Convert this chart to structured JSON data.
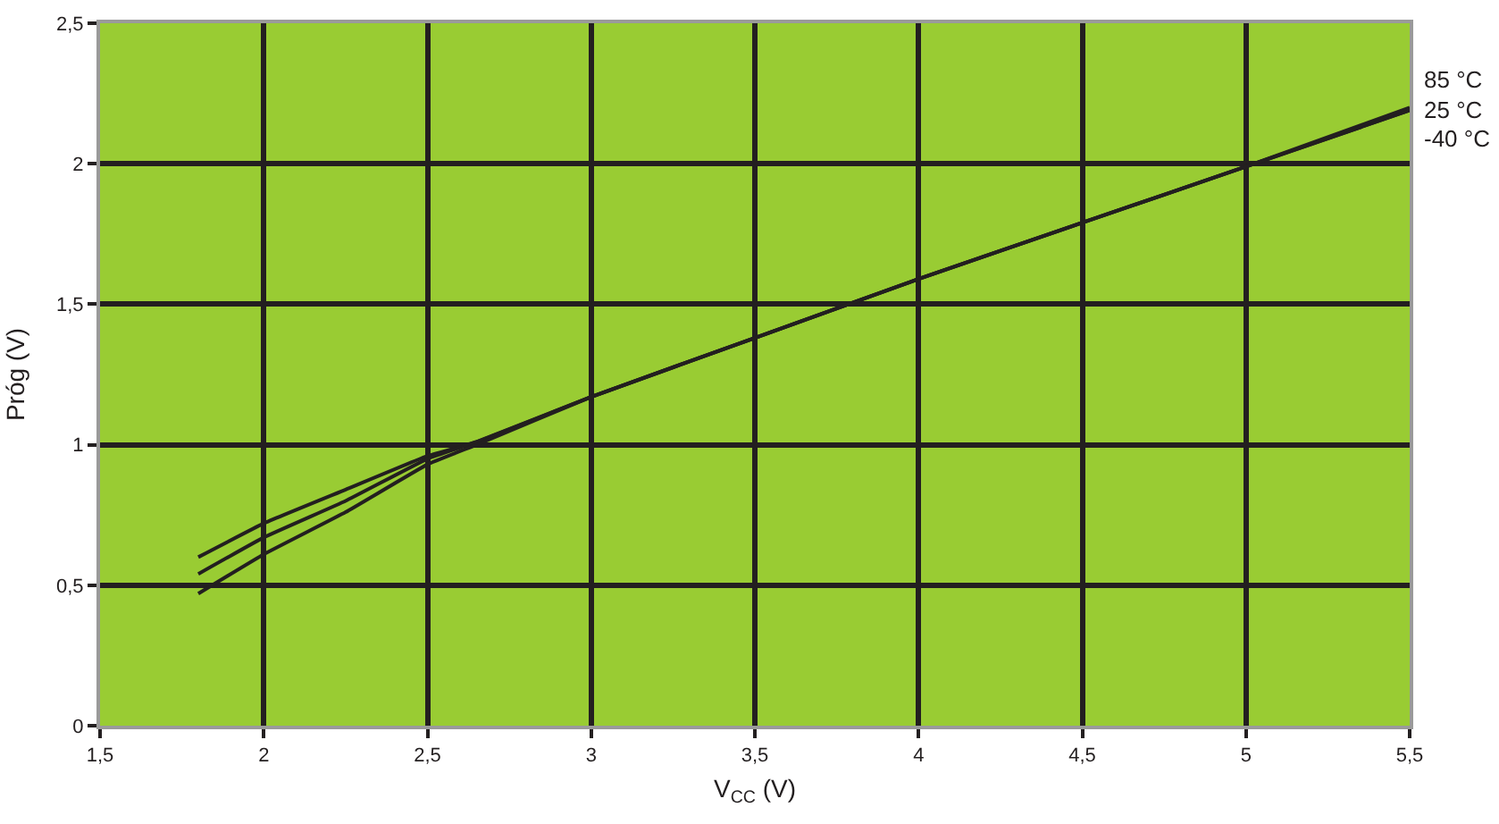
{
  "chart_data": {
    "type": "line",
    "xlabel": "V$_{CC}$ (V)",
    "ylabel": "Próg (V)",
    "x": [
      1.8,
      2.0,
      2.25,
      2.5,
      2.65,
      3.0,
      3.5,
      4.0,
      4.5,
      5.0,
      5.5
    ],
    "series": [
      {
        "name": "85 °C",
        "color": "#231f20",
        "values": [
          0.6,
          0.72,
          0.84,
          0.96,
          1.01,
          1.17,
          1.38,
          1.59,
          1.79,
          1.99,
          2.19
        ]
      },
      {
        "name": "25 °C",
        "color": "#231f20",
        "values": [
          0.54,
          0.67,
          0.8,
          0.95,
          1.01,
          1.17,
          1.38,
          1.59,
          1.79,
          1.99,
          2.19
        ]
      },
      {
        "name": "-40 °C",
        "color": "#231f20",
        "values": [
          0.47,
          0.61,
          0.76,
          0.93,
          1.0,
          1.17,
          1.38,
          1.59,
          1.79,
          1.99,
          2.2
        ]
      }
    ],
    "xlim": [
      1.5,
      5.5
    ],
    "xticks": [
      {
        "value": 1.5,
        "label": "1,5"
      },
      2,
      {
        "value": 2.5,
        "label": "2,5"
      },
      3,
      {
        "value": 3.5,
        "label": "3,5"
      },
      4,
      {
        "value": 4.5,
        "label": "4,5"
      },
      5,
      {
        "value": 5.5,
        "label": "5,5"
      }
    ],
    "ylim": [
      0,
      2.5
    ],
    "yticks": [
      0,
      {
        "value": 0.5,
        "label": "0,5"
      },
      1,
      {
        "value": 1.5,
        "label": "1,5"
      },
      2,
      {
        "value": 2.5,
        "label": "2,5"
      }
    ],
    "grid": true,
    "legend": false,
    "marker": "none",
    "line_style": "solid"
  }
}
